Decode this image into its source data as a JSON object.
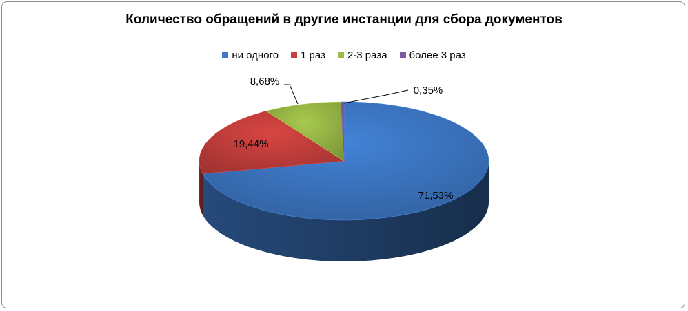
{
  "chart_data": {
    "type": "pie",
    "title": "Количество обращений в другие инстанции для сбора документов",
    "categories": [
      "ни одного",
      "1 раз",
      "2-3 раза",
      "более 3 раз"
    ],
    "values": [
      71.53,
      19.44,
      8.68,
      0.35
    ],
    "labels": [
      "71,53%",
      "19,44%",
      "8,68%",
      "0,35%"
    ],
    "colors": [
      "#3d78c6",
      "#c8403d",
      "#9bbb47",
      "#7b5aa3"
    ],
    "legend_position": "top",
    "style": "3d"
  }
}
